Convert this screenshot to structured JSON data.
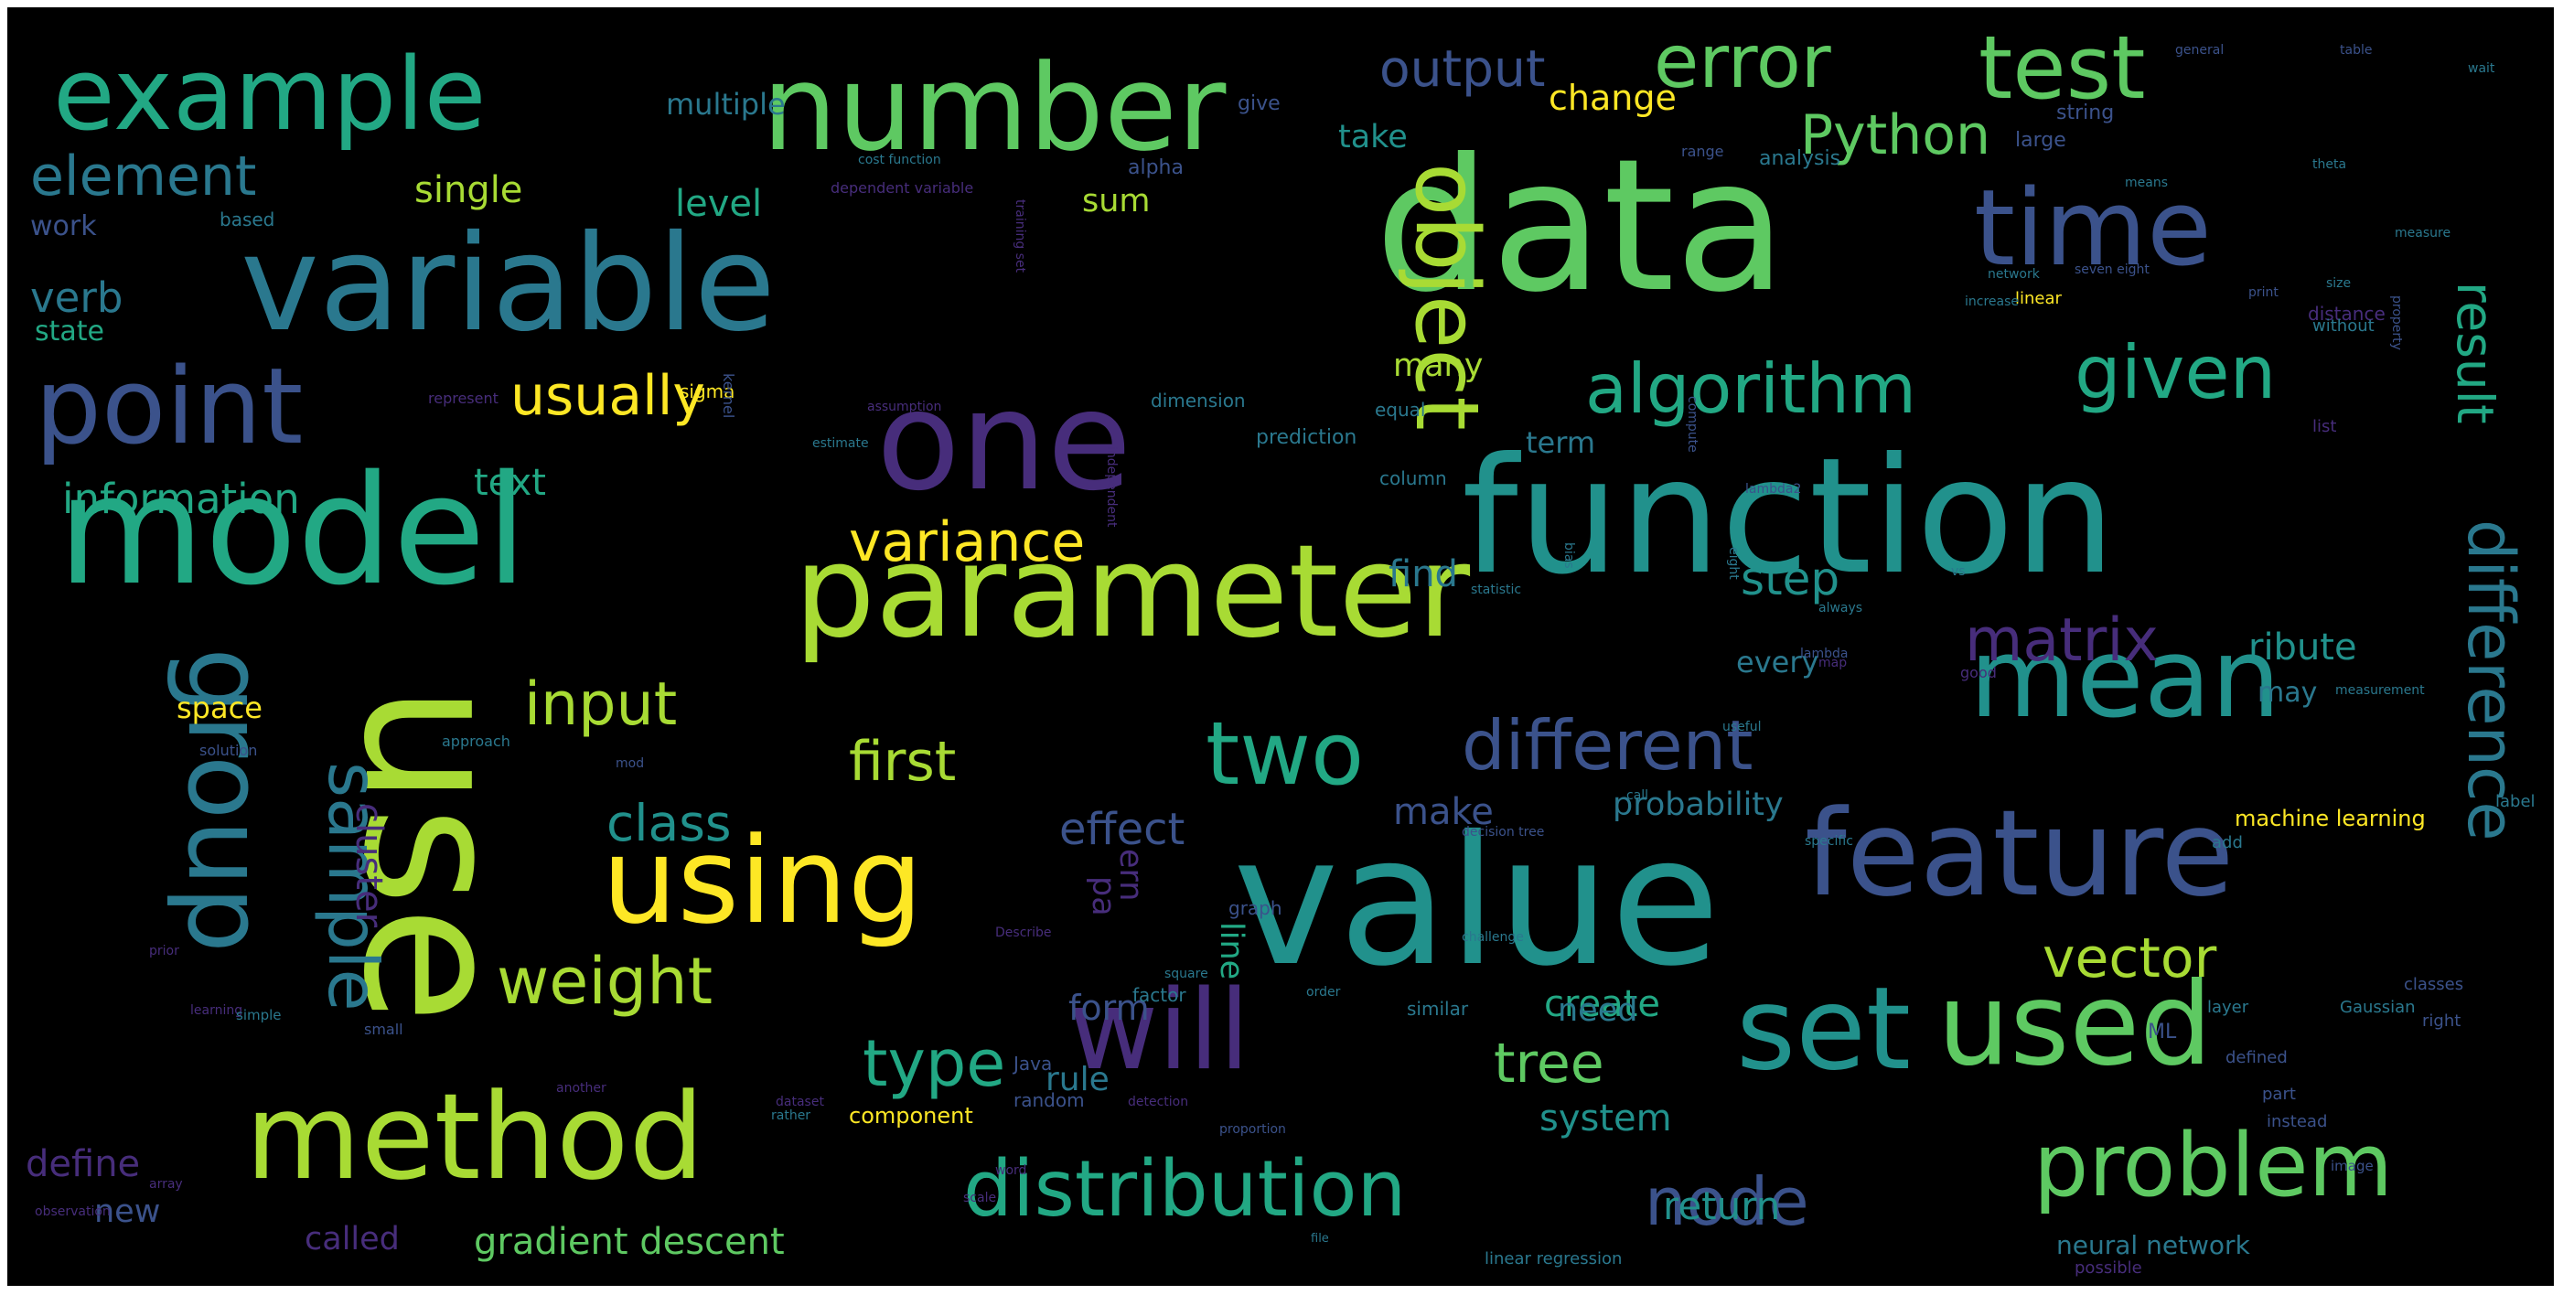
{
  "palette": {
    "background": "#000000",
    "frame": "#ffffff",
    "yellow": "#fde725",
    "lime": "#a8db34",
    "green": "#5ec962",
    "teal_green": "#22a884",
    "teal": "#21918c",
    "blue": "#2a788e",
    "slate": "#3b528b",
    "purple": "#472d7b"
  },
  "words": [
    {
      "text": "data",
      "color": "#5ec962"
    },
    {
      "text": "value",
      "color": "#21918c"
    },
    {
      "text": "function",
      "color": "#21918c"
    },
    {
      "text": "use",
      "color": "#a8db34"
    },
    {
      "text": "model",
      "color": "#22a884"
    },
    {
      "text": "variable",
      "color": "#2a788e"
    },
    {
      "text": "one",
      "color": "#472d7b"
    },
    {
      "text": "parameter",
      "color": "#a8db34"
    },
    {
      "text": "using",
      "color": "#fde725"
    },
    {
      "text": "number",
      "color": "#5ec962"
    },
    {
      "text": "example",
      "color": "#22a884"
    },
    {
      "text": "time",
      "color": "#3b528b"
    },
    {
      "text": "mean",
      "color": "#21918c"
    },
    {
      "text": "feature",
      "color": "#3b528b"
    },
    {
      "text": "will",
      "color": "#472d7b"
    },
    {
      "text": "set",
      "color": "#21918c"
    },
    {
      "text": "used",
      "color": "#5ec962"
    },
    {
      "text": "method",
      "color": "#a8db34"
    },
    {
      "text": "point",
      "color": "#3b528b"
    },
    {
      "text": "test",
      "color": "#5ec962"
    },
    {
      "text": "group",
      "color": "#2a788e"
    },
    {
      "text": "problem",
      "color": "#5ec962"
    },
    {
      "text": "distribution",
      "color": "#22a884"
    },
    {
      "text": "two",
      "color": "#22a884"
    },
    {
      "text": "object",
      "color": "#a8db34"
    },
    {
      "text": "error",
      "color": "#5ec962"
    },
    {
      "text": "algorithm",
      "color": "#22a884"
    },
    {
      "text": "given",
      "color": "#22a884"
    },
    {
      "text": "difference",
      "color": "#2a788e"
    },
    {
      "text": "different",
      "color": "#3b528b"
    },
    {
      "text": "node",
      "color": "#3b528b"
    },
    {
      "text": "sample",
      "color": "#2a788e"
    },
    {
      "text": "weight",
      "color": "#a8db34"
    },
    {
      "text": "Python",
      "color": "#5ec962"
    },
    {
      "text": "usually",
      "color": "#fde725"
    },
    {
      "text": "input",
      "color": "#a8db34"
    },
    {
      "text": "first",
      "color": "#a8db34"
    },
    {
      "text": "element",
      "color": "#2a788e"
    },
    {
      "text": "variance",
      "color": "#fde725"
    },
    {
      "text": "matrix",
      "color": "#472d7b"
    },
    {
      "text": "vector",
      "color": "#a8db34"
    },
    {
      "text": "output",
      "color": "#3b528b"
    },
    {
      "text": "type",
      "color": "#22a884"
    },
    {
      "text": "tree",
      "color": "#5ec962"
    },
    {
      "text": "class",
      "color": "#21918c"
    },
    {
      "text": "result",
      "color": "#22a884"
    },
    {
      "text": "step",
      "color": "#21918c"
    },
    {
      "text": "information",
      "color": "#22a884"
    },
    {
      "text": "gradient descent",
      "color": "#5ec962"
    },
    {
      "text": "verb",
      "color": "#2a788e"
    },
    {
      "text": "single",
      "color": "#a8db34"
    },
    {
      "text": "level",
      "color": "#22a884"
    },
    {
      "text": "effect",
      "color": "#3b528b"
    },
    {
      "text": "ribute",
      "color": "#21918c"
    },
    {
      "text": "cluster",
      "color": "#472d7b"
    },
    {
      "text": "probability",
      "color": "#2a788e"
    },
    {
      "text": "return",
      "color": "#21918c"
    },
    {
      "text": "system",
      "color": "#21918c"
    },
    {
      "text": "create",
      "color": "#22a884"
    },
    {
      "text": "text",
      "color": "#22a884"
    },
    {
      "text": "find",
      "color": "#2a788e"
    },
    {
      "text": "many",
      "color": "#a8db34"
    },
    {
      "text": "make",
      "color": "#3b528b"
    },
    {
      "text": "term",
      "color": "#2a788e"
    },
    {
      "text": "change",
      "color": "#fde725"
    },
    {
      "text": "sum",
      "color": "#a8db34"
    },
    {
      "text": "take",
      "color": "#21918c"
    },
    {
      "text": "multiple",
      "color": "#2a788e"
    },
    {
      "text": "space",
      "color": "#fde725"
    },
    {
      "text": "define",
      "color": "#472d7b"
    },
    {
      "text": "new",
      "color": "#3b528b"
    },
    {
      "text": "called",
      "color": "#472d7b"
    },
    {
      "text": "form",
      "color": "#3b528b"
    },
    {
      "text": "rule",
      "color": "#2a788e"
    },
    {
      "text": "need",
      "color": "#2a788e"
    },
    {
      "text": "line",
      "color": "#22a884"
    },
    {
      "text": "every",
      "color": "#2a788e"
    },
    {
      "text": "work",
      "color": "#3b528b"
    },
    {
      "text": "state",
      "color": "#22a884"
    },
    {
      "text": "ern",
      "color": "#472d7b"
    },
    {
      "text": "pa",
      "color": "#472d7b"
    },
    {
      "text": "may",
      "color": "#2a788e"
    },
    {
      "text": "neural network",
      "color": "#2a788e"
    },
    {
      "text": "component",
      "color": "#fde725"
    },
    {
      "text": "machine learning",
      "color": "#fde725"
    },
    {
      "text": "ML",
      "color": "#3b528b"
    },
    {
      "text": "alpha",
      "color": "#3b528b"
    },
    {
      "text": "give",
      "color": "#3b528b"
    },
    {
      "text": "large",
      "color": "#3b528b"
    },
    {
      "text": "string",
      "color": "#3b528b"
    },
    {
      "text": "based",
      "color": "#2a788e"
    },
    {
      "text": "analysis",
      "color": "#2a788e"
    },
    {
      "text": "dimension",
      "color": "#2a788e"
    },
    {
      "text": "prediction",
      "color": "#2a788e"
    },
    {
      "text": "equal",
      "color": "#2a788e"
    },
    {
      "text": "column",
      "color": "#2a788e"
    },
    {
      "text": "graph",
      "color": "#3b528b"
    },
    {
      "text": "factor",
      "color": "#2a788e"
    },
    {
      "text": "random",
      "color": "#3b528b"
    },
    {
      "text": "Java",
      "color": "#3b528b"
    },
    {
      "text": "possible",
      "color": "#472d7b"
    },
    {
      "text": "list",
      "color": "#472d7b"
    },
    {
      "text": "distance",
      "color": "#472d7b"
    },
    {
      "text": "similar",
      "color": "#2a788e"
    },
    {
      "text": "linear regression",
      "color": "#2a788e"
    },
    {
      "text": "defined",
      "color": "#3b528b"
    },
    {
      "text": "part",
      "color": "#3b528b"
    },
    {
      "text": "instead",
      "color": "#3b528b"
    },
    {
      "text": "right",
      "color": "#3b528b"
    },
    {
      "text": "label",
      "color": "#2a788e"
    },
    {
      "text": "add",
      "color": "#2a788e"
    },
    {
      "text": "layer",
      "color": "#2a788e"
    },
    {
      "text": "Gaussian",
      "color": "#2a788e"
    },
    {
      "text": "classes",
      "color": "#3b528b"
    },
    {
      "text": "image",
      "color": "#3b528b"
    },
    {
      "text": "without",
      "color": "#2a788e"
    },
    {
      "text": "linear",
      "color": "#fde725"
    },
    {
      "text": "table",
      "color": "#3b528b"
    },
    {
      "text": "general",
      "color": "#3b528b"
    },
    {
      "text": "range",
      "color": "#3b528b"
    },
    {
      "text": "cost function",
      "color": "#2a788e"
    },
    {
      "text": "training set",
      "color": "#472d7b"
    },
    {
      "text": "dependent variable",
      "color": "#472d7b"
    },
    {
      "text": "independent",
      "color": "#472d7b"
    },
    {
      "text": "assumption",
      "color": "#472d7b"
    },
    {
      "text": "represent",
      "color": "#472d7b"
    },
    {
      "text": "estimate",
      "color": "#2a788e"
    },
    {
      "text": "sigma",
      "color": "#fde725"
    },
    {
      "text": "mod",
      "color": "#3b528b"
    },
    {
      "text": "approach",
      "color": "#2a788e"
    },
    {
      "text": "kernel",
      "color": "#3b528b"
    },
    {
      "text": "solution",
      "color": "#3b528b"
    },
    {
      "text": "prior",
      "color": "#472d7b"
    },
    {
      "text": "small",
      "color": "#3b528b"
    },
    {
      "text": "learning",
      "color": "#472d7b"
    },
    {
      "text": "another",
      "color": "#472d7b"
    },
    {
      "text": "rather",
      "color": "#2a788e"
    },
    {
      "text": "dataset",
      "color": "#472d7b"
    },
    {
      "text": "word",
      "color": "#472d7b"
    },
    {
      "text": "detection",
      "color": "#472d7b"
    },
    {
      "text": "simple",
      "color": "#2a788e"
    },
    {
      "text": "array",
      "color": "#472d7b"
    },
    {
      "text": "observation",
      "color": "#472d7b"
    },
    {
      "text": "scale",
      "color": "#472d7b"
    },
    {
      "text": "file",
      "color": "#2a788e"
    },
    {
      "text": "always",
      "color": "#2a788e"
    },
    {
      "text": "map",
      "color": "#472d7b"
    },
    {
      "text": "network",
      "color": "#2a788e"
    },
    {
      "text": "good",
      "color": "#472d7b"
    },
    {
      "text": "measurement",
      "color": "#2a788e"
    },
    {
      "text": "means",
      "color": "#2a788e"
    },
    {
      "text": "theta",
      "color": "#2a788e"
    },
    {
      "text": "size",
      "color": "#2a788e"
    },
    {
      "text": "measure",
      "color": "#2a788e"
    },
    {
      "text": "property",
      "color": "#3b528b"
    },
    {
      "text": "increase",
      "color": "#2a788e"
    },
    {
      "text": "compute",
      "color": "#3b528b"
    },
    {
      "text": "proportion",
      "color": "#3b528b"
    },
    {
      "text": "square",
      "color": "#2a788e"
    },
    {
      "text": "order",
      "color": "#2a788e"
    },
    {
      "text": "call",
      "color": "#2a788e"
    },
    {
      "text": "specific",
      "color": "#2a788e"
    },
    {
      "text": "lambda",
      "color": "#3b528b"
    },
    {
      "text": "decision tree",
      "color": "#3b528b"
    },
    {
      "text": "useful",
      "color": "#2a788e"
    },
    {
      "text": "bias",
      "color": "#2a788e"
    },
    {
      "text": "statistic",
      "color": "#2a788e"
    },
    {
      "text": "eight",
      "color": "#2a788e"
    },
    {
      "text": "challenge",
      "color": "#2a788e"
    },
    {
      "text": "seven eight",
      "color": "#3b528b"
    },
    {
      "text": "print",
      "color": "#3b528b"
    },
    {
      "text": "lambda2",
      "color": "#3b528b"
    },
    {
      "text": "Describe",
      "color": "#472d7b"
    },
    {
      "text": "vs",
      "color": "#2a788e"
    },
    {
      "text": "wait",
      "color": "#2a788e"
    }
  ]
}
